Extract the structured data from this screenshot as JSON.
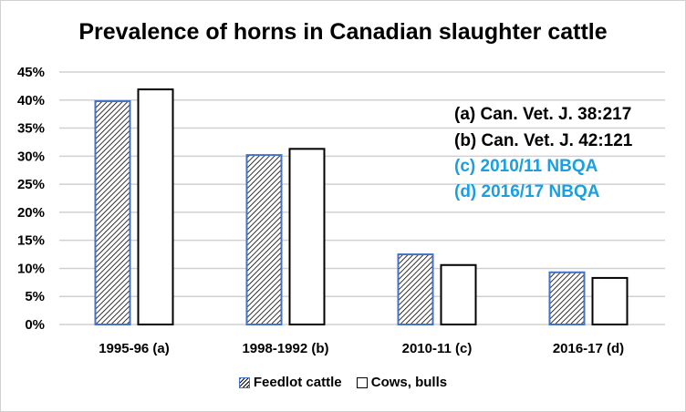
{
  "chart_data": {
    "type": "bar",
    "title": "Prevalence of horns in Canadian slaughter cattle",
    "categories": [
      "1995-96 (a)",
      "1998-1992 (b)",
      "2010-11 (c)",
      "2016-17 (d)"
    ],
    "series": [
      {
        "name": "Feedlot cattle",
        "values": [
          39.8,
          30.2,
          12.5,
          9.3
        ],
        "color": "#4472c4",
        "pattern": "diagonal-hatch"
      },
      {
        "name": "Cows, bulls",
        "values": [
          41.9,
          31.3,
          10.6,
          8.3
        ],
        "color": "#000000",
        "pattern": "none"
      }
    ],
    "ylim": [
      0,
      45
    ],
    "yticks": [
      0,
      5,
      10,
      15,
      20,
      25,
      30,
      35,
      40,
      45
    ],
    "ytick_labels": [
      "0%",
      "5%",
      "10%",
      "15%",
      "20%",
      "25%",
      "30%",
      "35%",
      "40%",
      "45%"
    ],
    "xlabel": "",
    "ylabel": "",
    "grid": true,
    "legend_position": "bottom",
    "annotations": [
      {
        "text": "(a) Can. Vet. J. 38:217",
        "color": "#000000"
      },
      {
        "text": "(b) Can. Vet. J. 42:121",
        "color": "#000000"
      },
      {
        "text": "(c) 2010/11 NBQA",
        "color": "#1a9fe0"
      },
      {
        "text": "(d) 2016/17 NBQA",
        "color": "#1a9fe0"
      }
    ]
  }
}
